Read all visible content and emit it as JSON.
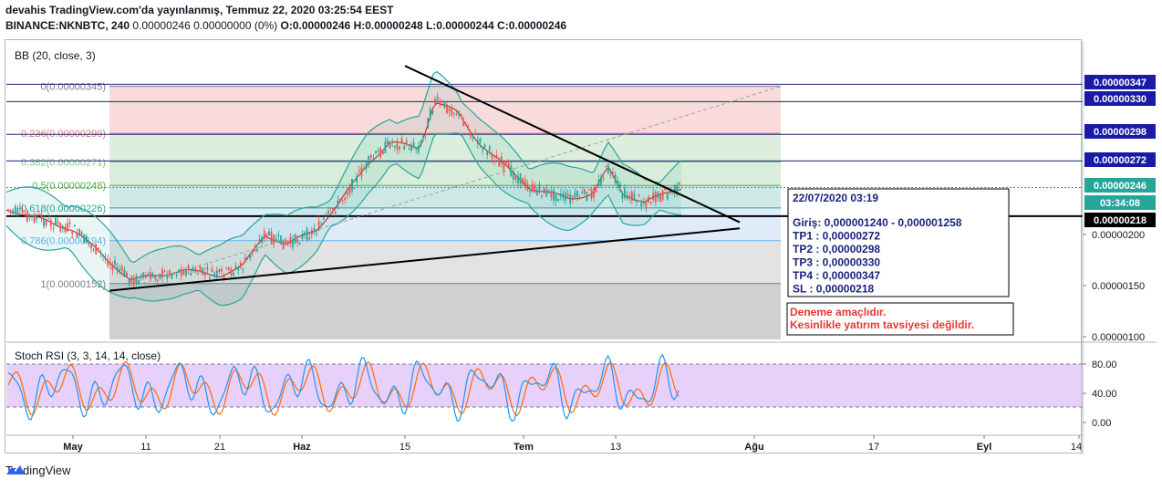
{
  "header": {
    "publisher_line": "devahis TradingView.com'da yayınlanmış, Temmuz 22, 2020 03:25:54 EEST",
    "symbol": "BINANCE:NKNBTC, 240",
    "change": "0.00000246 0.00000000 (0%)",
    "ohlc": "O:0.00000246 H:0.00000248 L:0.00000244 C:0.00000246"
  },
  "indicators": {
    "bb_label": "BB (20, close, 3)",
    "stoch_label": "Stoch RSI (3, 3, 14, 14, close)"
  },
  "fib_levels": [
    {
      "label": "0(0.00000345)",
      "price": 3.45e-06
    },
    {
      "label": "0.236(0.00000299)",
      "price": 2.99e-06
    },
    {
      "label": "0.382(0.00000271)",
      "price": 2.71e-06
    },
    {
      "label": "0.5(0.00000248)",
      "price": 2.48e-06
    },
    {
      "label": "0.618(0.00000226)",
      "price": 2.26e-06
    },
    {
      "label": "0.786(0.00000194)",
      "price": 1.94e-06
    },
    {
      "label": "1(0.00000152)",
      "price": 1.52e-06
    }
  ],
  "price_axis": {
    "ticks": [
      "0.00000200",
      "0.00000150",
      "0.00000100"
    ],
    "labels": [
      {
        "text": "0.00000347",
        "style": "blue"
      },
      {
        "text": "0.00000330",
        "style": "blue"
      },
      {
        "text": "0.00000298",
        "style": "blue"
      },
      {
        "text": "0.00000272",
        "style": "blue"
      },
      {
        "text": "0.00000246",
        "style": "teal"
      },
      {
        "text": "03:34:08",
        "style": "teal"
      },
      {
        "text": "0.00000218",
        "style": "black"
      }
    ]
  },
  "stoch_axis": {
    "ticks": [
      "80.00",
      "40.00",
      "0.00"
    ]
  },
  "time_axis": [
    "May",
    "11",
    "21",
    "Haz",
    "15",
    "Tem",
    "13",
    "Ağu",
    "17",
    "Eyl",
    "14"
  ],
  "annotation": {
    "date": "22/07/2020 03:19",
    "lines": [
      "Giriş: 0,000001240 - 0,000001258",
      "TP1 : 0,00000272",
      "TP2 : 0,00000298",
      "TP3 : 0,00000330",
      "TP4 : 0,00000347",
      "SL    : 0,00000218"
    ]
  },
  "disclaimer": {
    "line1": "Deneme amaçlıdır.",
    "line2": "Kesinlikle yatırım tavsiyesi değildir."
  },
  "footer": {
    "brand": "TradingView"
  },
  "colors": {
    "up": "#26a69a",
    "down": "#ef5350",
    "level_line": "#1a237e",
    "stoch_k": "#2196f3",
    "stoch_d": "#ff6d00",
    "bb_band": "#26a69a",
    "basis": "#b71c1c",
    "label_blue": "#1a1aa8",
    "label_teal": "#26a69a",
    "disclaimer": "#e53935"
  },
  "chart_data": {
    "type": "candlestick",
    "title": "",
    "symbol": "NKNBTC",
    "interval": "240",
    "series": [
      {
        "name": "approx_close_path",
        "values": [
          {
            "x": "2020-04-24",
            "y": 2.25e-06
          },
          {
            "x": "2020-05-01",
            "y": 2.05e-06
          },
          {
            "x": "2020-05-05",
            "y": 1.8e-06
          },
          {
            "x": "2020-05-09",
            "y": 1.55e-06
          },
          {
            "x": "2020-05-16",
            "y": 1.65e-06
          },
          {
            "x": "2020-05-21",
            "y": 1.6e-06
          },
          {
            "x": "2020-05-24",
            "y": 1.68e-06
          },
          {
            "x": "2020-05-27",
            "y": 2e-06
          },
          {
            "x": "2020-05-30",
            "y": 1.9e-06
          },
          {
            "x": "2020-06-03",
            "y": 2.05e-06
          },
          {
            "x": "2020-06-06",
            "y": 2.3e-06
          },
          {
            "x": "2020-06-10",
            "y": 2.7e-06
          },
          {
            "x": "2020-06-13",
            "y": 2.9e-06
          },
          {
            "x": "2020-06-17",
            "y": 2.85e-06
          },
          {
            "x": "2020-06-19",
            "y": 3.3e-06
          },
          {
            "x": "2020-06-22",
            "y": 3.2e-06
          },
          {
            "x": "2020-06-25",
            "y": 2.9e-06
          },
          {
            "x": "2020-06-28",
            "y": 2.7e-06
          },
          {
            "x": "2020-07-02",
            "y": 2.45e-06
          },
          {
            "x": "2020-07-07",
            "y": 2.35e-06
          },
          {
            "x": "2020-07-10",
            "y": 2.4e-06
          },
          {
            "x": "2020-07-12",
            "y": 2.65e-06
          },
          {
            "x": "2020-07-14",
            "y": 2.4e-06
          },
          {
            "x": "2020-07-17",
            "y": 2.32e-06
          },
          {
            "x": "2020-07-20",
            "y": 2.4e-06
          },
          {
            "x": "2020-07-22",
            "y": 2.46e-06
          }
        ]
      }
    ],
    "last_price": 2.46e-06,
    "ylim": [
      1e-06,
      3.6e-06
    ],
    "stoch_rsi_ylim": [
      0,
      100
    ],
    "stoch_rsi_bands": [
      80,
      20
    ],
    "trendlines": [
      {
        "name": "descending",
        "from": {
          "x": "2020-06-15",
          "y": 3.65e-06
        },
        "to": {
          "x": "2020-07-30",
          "y": 2.12e-06
        }
      },
      {
        "name": "ascending",
        "from": {
          "x": "2020-05-06",
          "y": 1.45e-06
        },
        "to": {
          "x": "2020-07-30",
          "y": 2.06e-06
        }
      }
    ],
    "horizontal_levels": [
      3.47e-06,
      3.3e-06,
      2.98e-06,
      2.72e-06,
      2.18e-06
    ]
  }
}
